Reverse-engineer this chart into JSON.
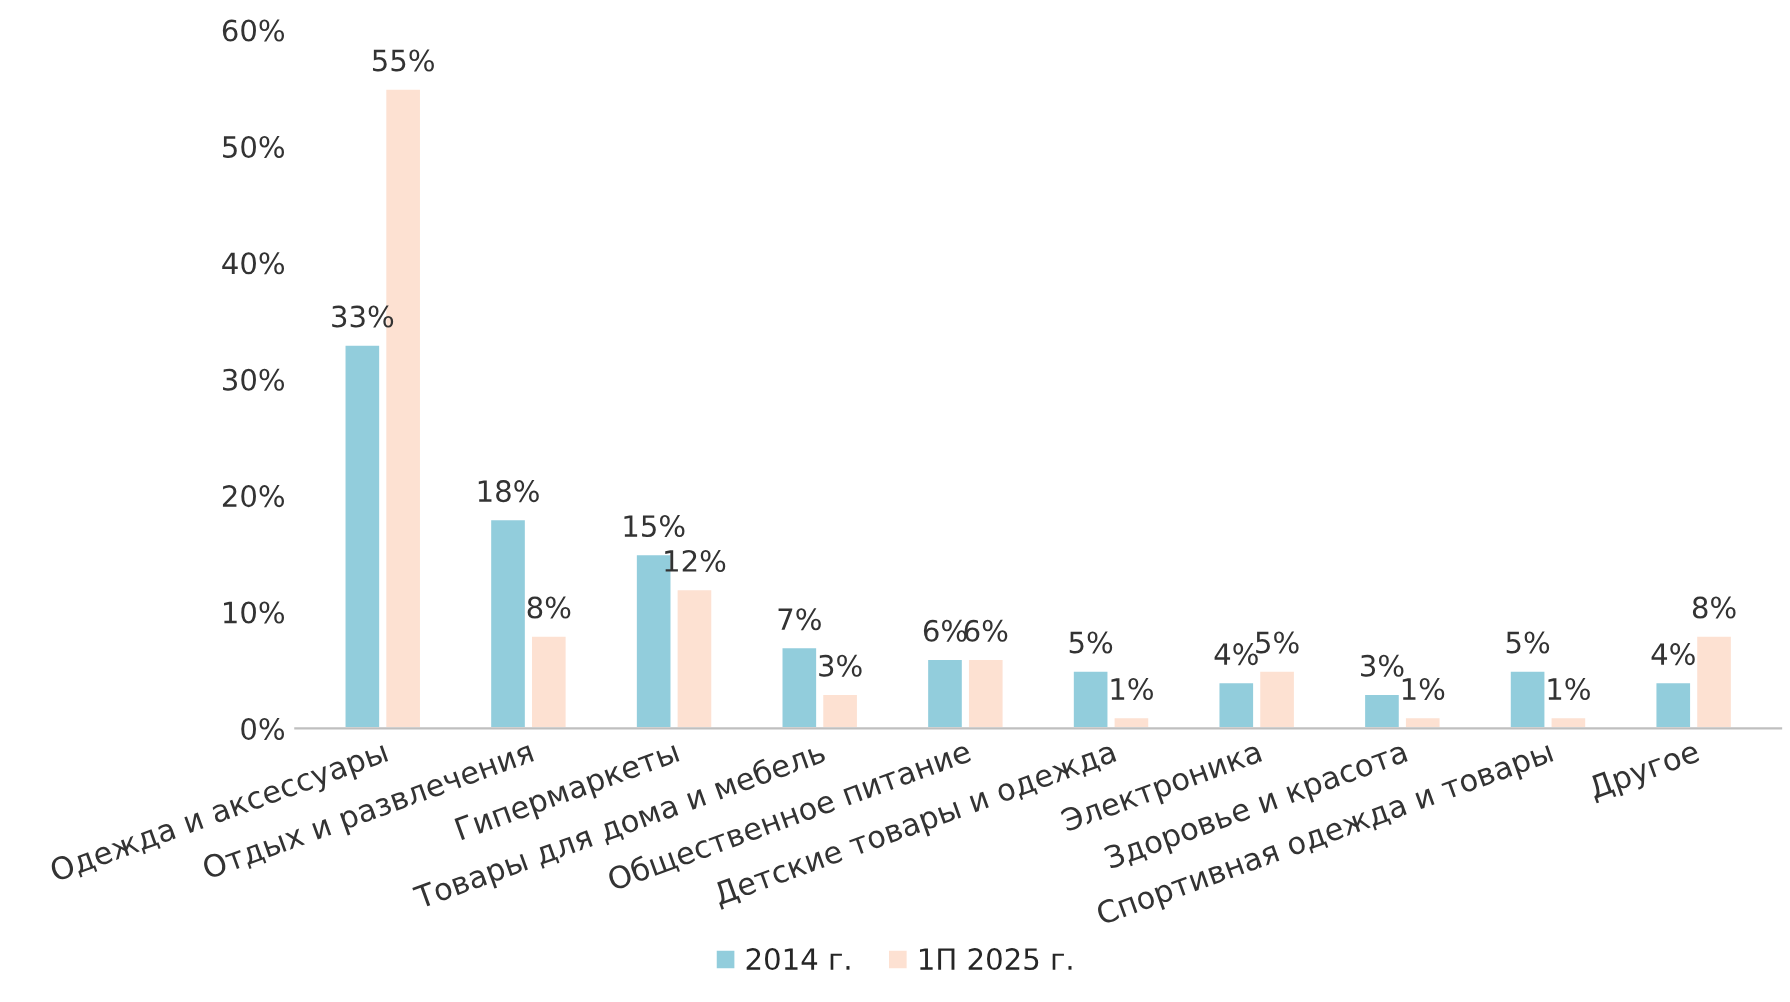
{
  "chart_data": {
    "type": "bar",
    "categories": [
      "Одежда и аксессуары",
      "Отдых и развлечения",
      "Гипермаркеты",
      "Товары для дома и мебель",
      "Общественное питание",
      "Детские товары и одежда",
      "Электроника",
      "Здоровье и красота",
      "Спортивная одежда и товары",
      "Другое"
    ],
    "series": [
      {
        "name": "2014 г.",
        "color": "#92cddc",
        "values": [
          33,
          18,
          15,
          7,
          6,
          5,
          4,
          3,
          5,
          4
        ],
        "value_labels": [
          "33%",
          "18%",
          "15%",
          "7%",
          "6%",
          "5%",
          "4%",
          "3%",
          "5%",
          "4%"
        ]
      },
      {
        "name": "1П 2025 г.",
        "color": "#fde1d2",
        "values": [
          55,
          8,
          12,
          3,
          6,
          1,
          5,
          1,
          1,
          8
        ],
        "value_labels": [
          "55%",
          "8%",
          "12%",
          "3%",
          "6%",
          "1%",
          "5%",
          "1%",
          "1%",
          "8%"
        ]
      }
    ],
    "ylim": [
      0,
      60
    ],
    "yticks": [
      {
        "value": 0,
        "label": "0%"
      },
      {
        "value": 10,
        "label": "10%"
      },
      {
        "value": 20,
        "label": "20%"
      },
      {
        "value": 30,
        "label": "30%"
      },
      {
        "value": 40,
        "label": "40%"
      },
      {
        "value": 50,
        "label": "50%"
      },
      {
        "value": 60,
        "label": "60%"
      }
    ],
    "grid": false,
    "legend": "bottom"
  }
}
